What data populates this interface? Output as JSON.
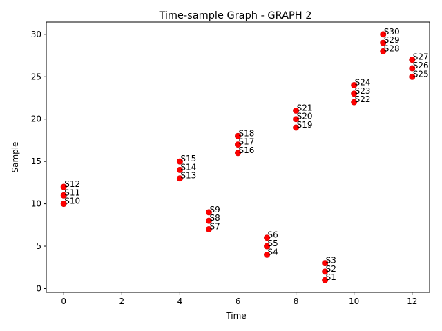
{
  "chart_data": {
    "type": "scatter",
    "title": "Time-sample Graph - GRAPH 2",
    "xlabel": "Time",
    "ylabel": "Sample",
    "xlim": [
      -0.6,
      12.6
    ],
    "ylim": [
      -0.45,
      31.45
    ],
    "xticks": [
      0,
      2,
      4,
      6,
      8,
      10,
      12
    ],
    "yticks": [
      0,
      5,
      10,
      15,
      20,
      25,
      30
    ],
    "grid": false,
    "marker_color": "#ff0000",
    "marker_edge_color": "#cc0000",
    "points": [
      {
        "label": "S1",
        "x": 9,
        "y": 1
      },
      {
        "label": "S2",
        "x": 9,
        "y": 2
      },
      {
        "label": "S3",
        "x": 9,
        "y": 3
      },
      {
        "label": "S4",
        "x": 7,
        "y": 4
      },
      {
        "label": "S5",
        "x": 7,
        "y": 5
      },
      {
        "label": "S6",
        "x": 7,
        "y": 6
      },
      {
        "label": "S7",
        "x": 5,
        "y": 7
      },
      {
        "label": "S8",
        "x": 5,
        "y": 8
      },
      {
        "label": "S9",
        "x": 5,
        "y": 9
      },
      {
        "label": "S10",
        "x": 0,
        "y": 10
      },
      {
        "label": "S11",
        "x": 0,
        "y": 11
      },
      {
        "label": "S12",
        "x": 0,
        "y": 12
      },
      {
        "label": "S13",
        "x": 4,
        "y": 13
      },
      {
        "label": "S14",
        "x": 4,
        "y": 14
      },
      {
        "label": "S15",
        "x": 4,
        "y": 15
      },
      {
        "label": "S16",
        "x": 6,
        "y": 16
      },
      {
        "label": "S17",
        "x": 6,
        "y": 17
      },
      {
        "label": "S18",
        "x": 6,
        "y": 18
      },
      {
        "label": "S19",
        "x": 8,
        "y": 19
      },
      {
        "label": "S20",
        "x": 8,
        "y": 20
      },
      {
        "label": "S21",
        "x": 8,
        "y": 21
      },
      {
        "label": "S22",
        "x": 10,
        "y": 22
      },
      {
        "label": "S23",
        "x": 10,
        "y": 23
      },
      {
        "label": "S24",
        "x": 10,
        "y": 24
      },
      {
        "label": "S25",
        "x": 12,
        "y": 25
      },
      {
        "label": "S26",
        "x": 12,
        "y": 26
      },
      {
        "label": "S27",
        "x": 12,
        "y": 27
      },
      {
        "label": "S28",
        "x": 11,
        "y": 28
      },
      {
        "label": "S29",
        "x": 11,
        "y": 29
      },
      {
        "label": "S30",
        "x": 11,
        "y": 30
      }
    ]
  }
}
